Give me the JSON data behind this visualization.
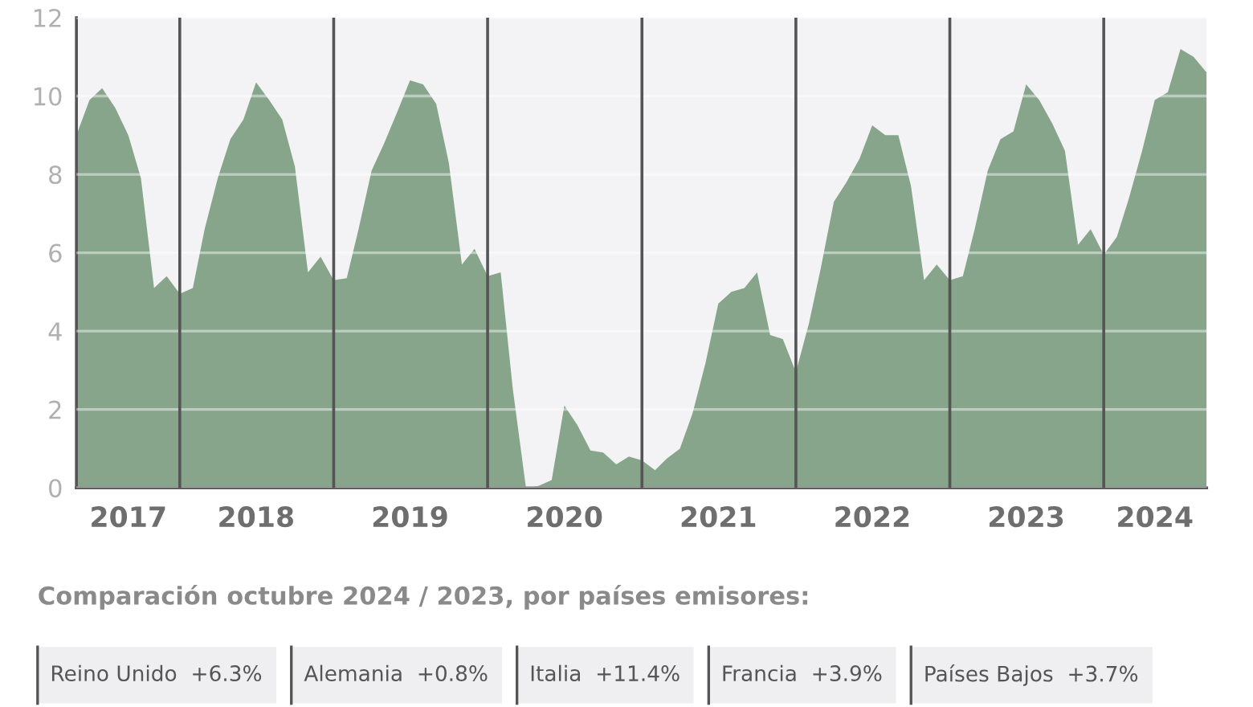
{
  "chart_data": {
    "type": "area",
    "x": [
      "2017-05",
      "2017-06",
      "2017-07",
      "2017-08",
      "2017-09",
      "2017-10",
      "2017-11",
      "2017-12",
      "2018-01",
      "2018-02",
      "2018-03",
      "2018-04",
      "2018-05",
      "2018-06",
      "2018-07",
      "2018-08",
      "2018-09",
      "2018-10",
      "2018-11",
      "2018-12",
      "2019-01",
      "2019-02",
      "2019-03",
      "2019-04",
      "2019-05",
      "2019-06",
      "2019-07",
      "2019-08",
      "2019-09",
      "2019-10",
      "2019-11",
      "2019-12",
      "2020-01",
      "2020-02",
      "2020-03",
      "2020-04",
      "2020-05",
      "2020-06",
      "2020-07",
      "2020-08",
      "2020-09",
      "2020-10",
      "2020-11",
      "2020-12",
      "2021-01",
      "2021-02",
      "2021-03",
      "2021-04",
      "2021-05",
      "2021-06",
      "2021-07",
      "2021-08",
      "2021-09",
      "2021-10",
      "2021-11",
      "2021-12",
      "2022-01",
      "2022-02",
      "2022-03",
      "2022-04",
      "2022-05",
      "2022-06",
      "2022-07",
      "2022-08",
      "2022-09",
      "2022-10",
      "2022-11",
      "2022-12",
      "2023-01",
      "2023-02",
      "2023-03",
      "2023-04",
      "2023-05",
      "2023-06",
      "2023-07",
      "2023-08",
      "2023-09",
      "2023-10",
      "2023-11",
      "2023-12",
      "2024-01",
      "2024-02",
      "2024-03",
      "2024-04",
      "2024-05",
      "2024-06",
      "2024-07",
      "2024-08",
      "2024-09"
    ],
    "series": [
      {
        "color": "#86a58a",
        "values": [
          9.0,
          9.9,
          10.2,
          9.7,
          9.0,
          7.9,
          5.1,
          5.4,
          4.95,
          5.1,
          6.6,
          7.9,
          8.9,
          9.4,
          10.35,
          9.9,
          9.4,
          8.2,
          5.5,
          5.9,
          5.3,
          5.35,
          6.6,
          8.1,
          8.8,
          9.6,
          10.4,
          10.3,
          9.8,
          8.3,
          5.7,
          6.1,
          5.4,
          5.5,
          2.5,
          0,
          0.05,
          0.2,
          2.1,
          1.6,
          0.95,
          0.9,
          0.6,
          0.8,
          0.7,
          0.45,
          0.75,
          1.0,
          1.9,
          3.2,
          4.7,
          5.0,
          5.1,
          5.5,
          3.9,
          3.8,
          2.95,
          4.2,
          5.6,
          7.3,
          7.8,
          8.4,
          9.25,
          9.0,
          9.0,
          7.7,
          5.3,
          5.7,
          5.3,
          5.4,
          6.6,
          8.1,
          8.9,
          9.1,
          10.3,
          9.9,
          9.3,
          8.6,
          6.2,
          6.6,
          5.95,
          6.4,
          7.4,
          8.6,
          9.9,
          10.1,
          11.2,
          11.0,
          10.6
        ]
      }
    ],
    "xlim": [
      "2017-05-01",
      "2024-09-01"
    ],
    "xticks": [
      {
        "value": "2017-09-01",
        "label": "2017"
      },
      {
        "value": "2018-07-01",
        "label": "2018"
      },
      {
        "value": "2019-07-01",
        "label": "2019"
      },
      {
        "value": "2020-07-01",
        "label": "2020"
      },
      {
        "value": "2021-07-01",
        "label": "2021"
      },
      {
        "value": "2022-07-01",
        "label": "2022"
      },
      {
        "value": "2023-07-01",
        "label": "2023"
      },
      {
        "value": "2024-05-01",
        "label": "2024"
      }
    ],
    "ylim": [
      0,
      12
    ],
    "yticks": [
      0,
      2,
      4,
      6,
      8,
      10,
      12
    ],
    "grid": "y",
    "ref_lines": [
      {
        "axis": "x",
        "value": "2018-01-01",
        "color": "#555555"
      },
      {
        "axis": "x",
        "value": "2019-01-01",
        "color": "#555555"
      },
      {
        "axis": "x",
        "value": "2020-01-01",
        "color": "#555555"
      },
      {
        "axis": "x",
        "value": "2021-01-01",
        "color": "#555555"
      },
      {
        "axis": "x",
        "value": "2022-01-01",
        "color": "#555555"
      },
      {
        "axis": "x",
        "value": "2023-01-01",
        "color": "#555555"
      },
      {
        "axis": "x",
        "value": "2024-01-01",
        "color": "#555555"
      }
    ],
    "annotations": [
      "Comparación octubre 2024 / 2023, por países emisores:",
      "Reino Unido  +6.3%",
      "Alemania  +0.8%",
      "Italia  +11.4%",
      "Francia  +3.9%",
      "Países Bajos  +3.7%"
    ]
  }
}
